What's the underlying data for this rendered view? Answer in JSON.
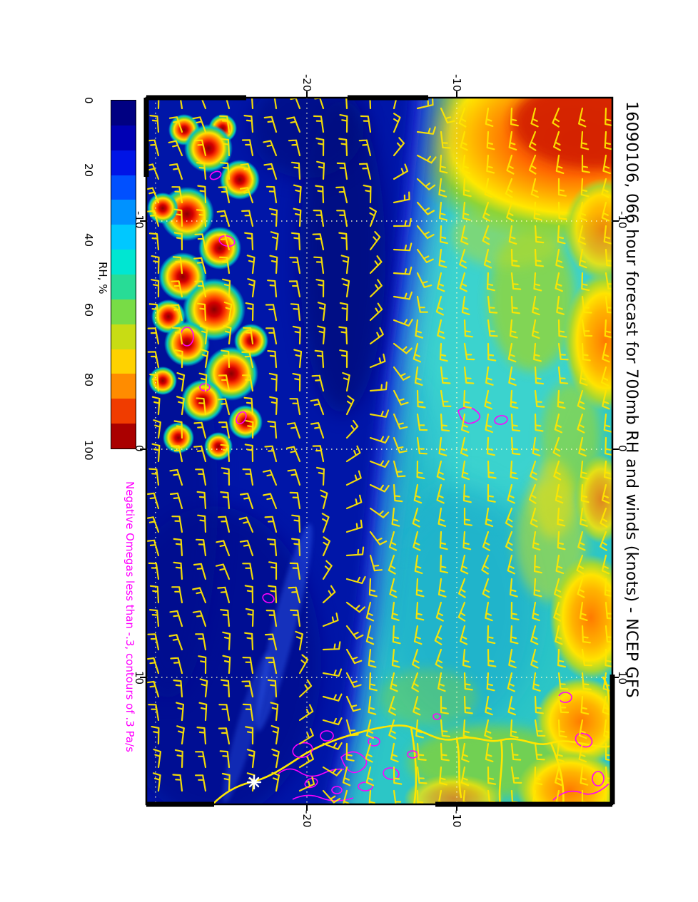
{
  "title": "16090106, 066 hour forecast for 700mb RH and winds (knots) - NCEP GFS",
  "caption": "Negative Omegas less than -.3, contours of .3 Pa/s",
  "colorbar": {
    "label": "RH, %",
    "tick_labels": [
      "0",
      "20",
      "40",
      "60",
      "80",
      "100"
    ],
    "segment_colors_top_to_bottom": [
      "#000082",
      "#0000b4",
      "#0014e6",
      "#0050ff",
      "#0092ff",
      "#00c8ff",
      "#00e6d2",
      "#28dc96",
      "#78dc46",
      "#c8dc14",
      "#ffd200",
      "#ff8c00",
      "#f03c00",
      "#aa0000"
    ]
  },
  "axes": {
    "top": [
      "-20",
      "-10"
    ],
    "bottom": [
      "-20",
      "-10"
    ],
    "left": [
      "-10",
      "0",
      "10"
    ],
    "right": [
      "-10",
      "0",
      "10"
    ]
  },
  "chart_data": {
    "type": "heatmap",
    "title": "16090106, 066 hour forecast for 700mb RH and winds (knots) - NCEP GFS",
    "model": "NCEP GFS",
    "init_time": "16090106",
    "forecast_hour": "066",
    "level": "700mb",
    "field": "relative humidity (RH, %) shaded, wind barbs in knots, negative omega contours",
    "colorbar_range": [
      0,
      100
    ],
    "colorbar_ticks": [
      0,
      20,
      40,
      60,
      80,
      100
    ],
    "x_ticks": [
      -20,
      -10
    ],
    "y_ticks": [
      -10,
      0,
      10
    ],
    "orientation": "entire plot rotated 90 degrees (landscape figure shown in portrait)",
    "rh_features": [
      {
        "area": "upper-left quadrant",
        "rh_pct": "90-100",
        "desc": "cluster of saturated red convective cells embedded in very dry dark-blue air, ringed by yellow/green transition bands"
      },
      {
        "area": "diagonal band through center-left and lower-left",
        "rh_pct": "0-15",
        "desc": "very dry air (dark blue)"
      },
      {
        "area": "right half",
        "rh_pct": "35-65",
        "desc": "moderately moist air (cyan to green)"
      },
      {
        "area": "top-right corner",
        "rh_pct": "75-95",
        "desc": "large moist orange-red plume"
      },
      {
        "area": "right edge and bottom-right near coastline",
        "rh_pct": "60-85",
        "desc": "yellow-orange moist patches"
      }
    ],
    "omega_contours": {
      "threshold": "-.3 Pa/s",
      "interval": ".3 Pa/s",
      "locations": [
        "inside upper-left convective cluster",
        "two small cells near map center",
        "dense cluster along the bottom coastline",
        "scattered cells along lower-right edge"
      ]
    },
    "winds": {
      "left_of_moisture_boundary": "northerly approx 10-20 kt (estimated from barbs)",
      "right_half": "southerly approx 5-15 kt (estimated from barbs)",
      "units": "knots"
    },
    "overlays": [
      "yellow wind barbs (knots)",
      "magenta negative-omega contours",
      "yellow coastline and rivers (West Africa)",
      "white asterisk station marker near coast",
      "dotted yellow lat/lon gridlines"
    ],
    "style": {
      "barb_color": "#ffe600",
      "omega_contour_color": "#ff00ff",
      "coastline_color": "#ffe600",
      "caption_color": "#ff00ff",
      "gridline_color": "#ffffc8",
      "station_marker_color": "#ffffff",
      "frame_color": "#000000"
    }
  }
}
